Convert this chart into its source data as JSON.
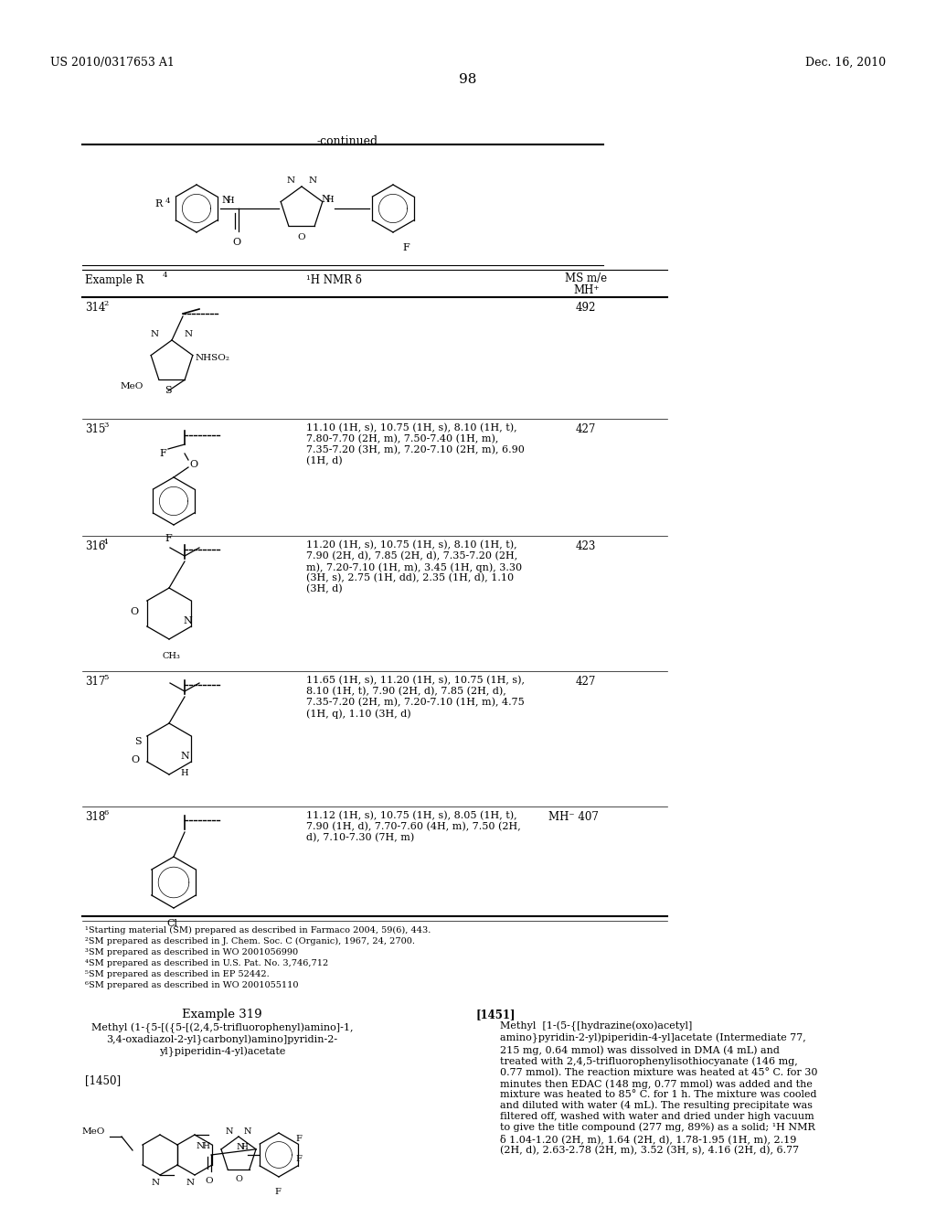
{
  "page_header_left": "US 2010/0317653 A1",
  "page_header_right": "Dec. 16, 2010",
  "page_number": "98",
  "continued_label": "-continued",
  "bg_color": "#ffffff",
  "text_color": "#000000",
  "table_header_ex": "Example R",
  "table_header_ex_sup": "4",
  "table_header_nmr": "¹H NMR δ",
  "table_header_ms1": "MS m/e",
  "table_header_ms2": "MH⁺",
  "rows": [
    {
      "example": "314",
      "example_sup": "2",
      "nmr": "",
      "ms": "492"
    },
    {
      "example": "315",
      "example_sup": "3",
      "nmr": "11.10 (1H, s), 10.75 (1H, s), 8.10 (1H, t),\n7.80-7.70 (2H, m), 7.50-7.40 (1H, m),\n7.35-7.20 (3H, m), 7.20-7.10 (2H, m), 6.90\n(1H, d)",
      "ms": "427"
    },
    {
      "example": "316",
      "example_sup": "4",
      "nmr": "11.20 (1H, s), 10.75 (1H, s), 8.10 (1H, t),\n7.90 (2H, d), 7.85 (2H, d), 7.35-7.20 (2H,\nm), 7.20-7.10 (1H, m), 3.45 (1H, qn), 3.30\n(3H, s), 2.75 (1H, dd), 2.35 (1H, d), 1.10\n(3H, d)",
      "ms": "423"
    },
    {
      "example": "317",
      "example_sup": "5",
      "nmr": "11.65 (1H, s), 11.20 (1H, s), 10.75 (1H, s),\n8.10 (1H, t), 7.90 (2H, d), 7.85 (2H, d),\n7.35-7.20 (2H, m), 7.20-7.10 (1H, m), 4.75\n(1H, q), 1.10 (3H, d)",
      "ms": "427"
    },
    {
      "example": "318",
      "example_sup": "6",
      "nmr": "11.12 (1H, s), 10.75 (1H, s), 8.05 (1H, t),\n7.90 (1H, d), 7.70-7.60 (4H, m), 7.50 (2H,\nd), 7.10-7.30 (7H, m)",
      "ms": "MH⁻ 407"
    }
  ],
  "footnotes": [
    "¹Starting material (SM) prepared as described in Farmaco 2004, 59(6), 443.",
    "²SM prepared as described in J. Chem. Soc. C (Organic), 1967, 24, 2700.",
    "³SM prepared as described in WO 2001056990",
    "⁴SM prepared as described in U.S. Pat. No. 3,746,712",
    "⁵SM prepared as described in EP 52442.",
    "⁶SM prepared as described in WO 2001055110"
  ],
  "example319_title": "Example 319",
  "example319_subtitle": "Methyl (1-{5-[({5-[(2,4,5-trifluorophenyl)amino]-1,\n3,4-oxadiazol-2-yl}carbonyl)amino]pyridin-2-\nyl}piperidin-4-yl)acetate",
  "ref1450": "[1450]",
  "ref1451": "[1451]",
  "text1451": "Methyl  [1-(5-{[hydrazine(oxo)acetyl]\namino}pyridin-2-yl)piperidin-4-yl]acetate (Intermediate 77,\n215 mg, 0.64 mmol) was dissolved in DMA (4 mL) and\ntreated with 2,4,5-trifluorophenylisothiocyanate (146 mg,\n0.77 mmol). The reaction mixture was heated at 45° C. for 30\nminutes then EDAC (148 mg, 0.77 mmol) was added and the\nmixture was heated to 85° C. for 1 h. The mixture was cooled\nand diluted with water (4 mL). The resulting precipitate was\nfiltered off, washed with water and dried under high vacuum\nto give the title compound (277 mg, 89%) as a solid; ¹H NMR\nδ 1.04-1.20 (2H, m), 1.64 (2H, d), 1.78-1.95 (1H, m), 2.19\n(2H, d), 2.63-2.78 (2H, m), 3.52 (3H, s), 4.16 (2H, d), 6.77"
}
